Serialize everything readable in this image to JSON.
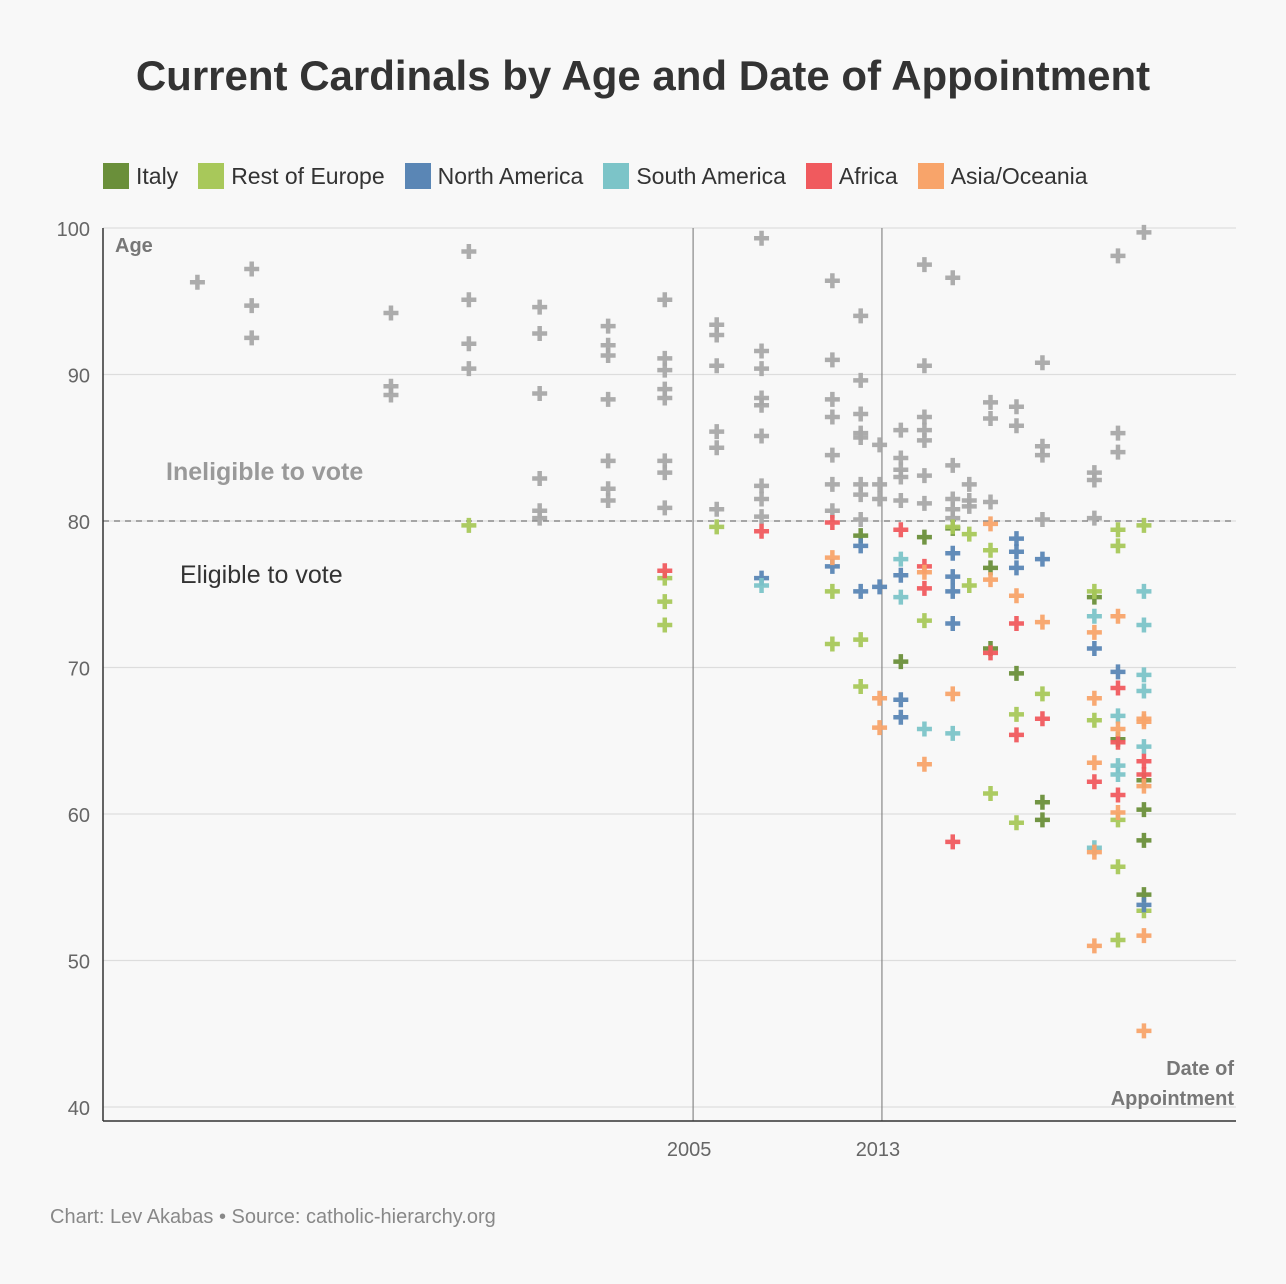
{
  "chart_data": {
    "type": "scatter",
    "title": "Current Cardinals by Age and Date of Appointment",
    "xlabel": "Date of Appointment",
    "ylabel": "Age",
    "xlim": [
      1980,
      2028
    ],
    "ylim": [
      40,
      100
    ],
    "x_ticks": [
      2005,
      2013
    ],
    "y_ticks": [
      40,
      50,
      60,
      70,
      80,
      90,
      100
    ],
    "reference_line": {
      "y": 80,
      "style": "dashed",
      "above_label": "Ineligible to vote",
      "below_label": "Eligible to vote"
    },
    "vertical_lines": [
      2005,
      2013
    ],
    "legend_position": "top",
    "colors": {
      "Italy": "#6a8f3a",
      "Rest of Europe": "#a8c85a",
      "North America": "#5a86b5",
      "South America": "#7cc4c8",
      "Africa": "#f05a5e",
      "Asia/Oceania": "#f8a46a",
      "Ineligible": "#a8a8a8"
    },
    "series": [
      {
        "name": "Ineligible",
        "points": [
          [
            1984,
            96.3
          ],
          [
            1986.3,
            97.2
          ],
          [
            1986.3,
            94.7
          ],
          [
            1986.3,
            92.5
          ],
          [
            1992.2,
            94.2
          ],
          [
            1992.2,
            89.2
          ],
          [
            1992.2,
            88.6
          ],
          [
            1995.5,
            98.4
          ],
          [
            1995.5,
            95.1
          ],
          [
            1995.5,
            92.1
          ],
          [
            1995.5,
            90.4
          ],
          [
            1998.5,
            94.6
          ],
          [
            1998.5,
            92.8
          ],
          [
            1998.5,
            88.7
          ],
          [
            1998.5,
            82.9
          ],
          [
            1998.5,
            80.7
          ],
          [
            1998.5,
            80.2
          ],
          [
            2001.4,
            93.3
          ],
          [
            2001.4,
            92.0
          ],
          [
            2001.4,
            91.3
          ],
          [
            2001.4,
            88.3
          ],
          [
            2001.4,
            84.1
          ],
          [
            2001.4,
            82.2
          ],
          [
            2001.4,
            81.4
          ],
          [
            2003.8,
            95.1
          ],
          [
            2003.8,
            91.1
          ],
          [
            2003.8,
            90.3
          ],
          [
            2003.8,
            89.0
          ],
          [
            2003.8,
            88.4
          ],
          [
            2003.8,
            84.1
          ],
          [
            2003.8,
            83.3
          ],
          [
            2003.8,
            80.9
          ],
          [
            2006.0,
            93.4
          ],
          [
            2006.0,
            92.7
          ],
          [
            2006.0,
            90.6
          ],
          [
            2006.0,
            86.1
          ],
          [
            2006.0,
            85.0
          ],
          [
            2006.0,
            80.8
          ],
          [
            2007.9,
            99.3
          ],
          [
            2007.9,
            91.6
          ],
          [
            2007.9,
            90.4
          ],
          [
            2007.9,
            88.4
          ],
          [
            2007.9,
            87.9
          ],
          [
            2007.9,
            85.8
          ],
          [
            2007.9,
            82.4
          ],
          [
            2007.9,
            81.5
          ],
          [
            2007.9,
            80.3
          ],
          [
            2010.9,
            96.4
          ],
          [
            2010.9,
            91.0
          ],
          [
            2010.9,
            88.3
          ],
          [
            2010.9,
            87.1
          ],
          [
            2010.9,
            84.5
          ],
          [
            2010.9,
            82.5
          ],
          [
            2010.9,
            80.7
          ],
          [
            2012.1,
            94.0
          ],
          [
            2012.1,
            89.6
          ],
          [
            2012.1,
            87.3
          ],
          [
            2012.1,
            86.0
          ],
          [
            2012.1,
            85.7
          ],
          [
            2012.1,
            82.5
          ],
          [
            2012.1,
            81.8
          ],
          [
            2012.1,
            80.1
          ],
          [
            2012.9,
            85.2
          ],
          [
            2012.9,
            82.5
          ],
          [
            2012.9,
            81.5
          ],
          [
            2013.8,
            86.2
          ],
          [
            2013.8,
            84.3
          ],
          [
            2013.8,
            83.5
          ],
          [
            2013.8,
            83.0
          ],
          [
            2013.8,
            81.4
          ],
          [
            2014.8,
            97.5
          ],
          [
            2014.8,
            90.6
          ],
          [
            2014.8,
            87.1
          ],
          [
            2014.8,
            86.2
          ],
          [
            2014.8,
            85.5
          ],
          [
            2014.8,
            83.1
          ],
          [
            2014.8,
            81.2
          ],
          [
            2016.0,
            96.6
          ],
          [
            2016.0,
            83.8
          ],
          [
            2016.0,
            81.5
          ],
          [
            2016.0,
            80.8
          ],
          [
            2016.0,
            80.2
          ],
          [
            2016.7,
            82.5
          ],
          [
            2016.7,
            81.4
          ],
          [
            2016.7,
            81.0
          ],
          [
            2017.6,
            88.1
          ],
          [
            2017.6,
            87.0
          ],
          [
            2017.6,
            81.3
          ],
          [
            2018.7,
            87.8
          ],
          [
            2018.7,
            86.5
          ],
          [
            2019.8,
            90.8
          ],
          [
            2019.8,
            85.1
          ],
          [
            2019.8,
            84.5
          ],
          [
            2019.8,
            80.1
          ],
          [
            2022.0,
            83.3
          ],
          [
            2022.0,
            82.8
          ],
          [
            2022.0,
            80.2
          ],
          [
            2023.0,
            98.1
          ],
          [
            2023.0,
            86.0
          ],
          [
            2023.0,
            84.7
          ],
          [
            2024.1,
            99.7
          ]
        ]
      },
      {
        "name": "Italy",
        "points": [
          [
            2012.1,
            79.0
          ],
          [
            2014.8,
            78.9
          ],
          [
            2013.8,
            70.4
          ],
          [
            2016.0,
            79.5
          ],
          [
            2017.6,
            76.8
          ],
          [
            2017.6,
            71.3
          ],
          [
            2018.7,
            69.6
          ],
          [
            2019.8,
            60.8
          ],
          [
            2019.8,
            59.6
          ],
          [
            2022.0,
            74.8
          ],
          [
            2023.0,
            65.1
          ],
          [
            2024.1,
            62.3
          ],
          [
            2024.1,
            60.3
          ],
          [
            2024.1,
            58.2
          ],
          [
            2024.1,
            54.5
          ]
        ]
      },
      {
        "name": "Rest of Europe",
        "points": [
          [
            1995.5,
            79.7
          ],
          [
            2003.8,
            76.1
          ],
          [
            2003.8,
            74.5
          ],
          [
            2003.8,
            72.9
          ],
          [
            2006.0,
            79.6
          ],
          [
            2010.9,
            75.2
          ],
          [
            2010.9,
            71.6
          ],
          [
            2012.1,
            71.9
          ],
          [
            2012.1,
            68.7
          ],
          [
            2014.8,
            73.2
          ],
          [
            2016.0,
            79.6
          ],
          [
            2016.7,
            79.1
          ],
          [
            2016.7,
            75.6
          ],
          [
            2017.6,
            78.0
          ],
          [
            2017.6,
            61.4
          ],
          [
            2018.7,
            66.8
          ],
          [
            2018.7,
            59.4
          ],
          [
            2019.8,
            68.2
          ],
          [
            2022.0,
            75.2
          ],
          [
            2022.0,
            66.4
          ],
          [
            2023.0,
            79.4
          ],
          [
            2023.0,
            78.3
          ],
          [
            2023.0,
            59.6
          ],
          [
            2023.0,
            56.4
          ],
          [
            2023.0,
            51.4
          ],
          [
            2024.1,
            79.7
          ],
          [
            2024.1,
            53.4
          ]
        ]
      },
      {
        "name": "North America",
        "points": [
          [
            2007.9,
            76.1
          ],
          [
            2010.9,
            76.9
          ],
          [
            2012.1,
            78.3
          ],
          [
            2012.1,
            75.2
          ],
          [
            2012.9,
            75.5
          ],
          [
            2013.8,
            76.3
          ],
          [
            2013.8,
            67.8
          ],
          [
            2013.8,
            66.6
          ],
          [
            2016.0,
            77.8
          ],
          [
            2016.0,
            76.2
          ],
          [
            2016.0,
            75.2
          ],
          [
            2016.0,
            73.0
          ],
          [
            2018.7,
            78.8
          ],
          [
            2018.7,
            77.9
          ],
          [
            2018.7,
            76.8
          ],
          [
            2019.8,
            77.4
          ],
          [
            2022.0,
            71.3
          ],
          [
            2023.0,
            69.7
          ],
          [
            2024.1,
            53.8
          ]
        ]
      },
      {
        "name": "South America",
        "points": [
          [
            2007.9,
            75.6
          ],
          [
            2013.8,
            77.4
          ],
          [
            2013.8,
            74.8
          ],
          [
            2014.8,
            65.8
          ],
          [
            2016.0,
            65.5
          ],
          [
            2022.0,
            73.5
          ],
          [
            2022.0,
            57.7
          ],
          [
            2023.0,
            66.7
          ],
          [
            2023.0,
            63.3
          ],
          [
            2023.0,
            62.7
          ],
          [
            2024.1,
            75.2
          ],
          [
            2024.1,
            72.9
          ],
          [
            2024.1,
            69.5
          ],
          [
            2024.1,
            68.4
          ],
          [
            2024.1,
            64.6
          ]
        ]
      },
      {
        "name": "Africa",
        "points": [
          [
            2003.8,
            76.6
          ],
          [
            2007.9,
            79.3
          ],
          [
            2010.9,
            79.9
          ],
          [
            2013.8,
            79.4
          ],
          [
            2014.8,
            76.9
          ],
          [
            2014.8,
            75.4
          ],
          [
            2016.0,
            58.1
          ],
          [
            2017.6,
            71.0
          ],
          [
            2018.7,
            73.0
          ],
          [
            2018.7,
            65.4
          ],
          [
            2019.8,
            66.5
          ],
          [
            2022.0,
            62.2
          ],
          [
            2023.0,
            68.6
          ],
          [
            2023.0,
            64.9
          ],
          [
            2023.0,
            61.3
          ],
          [
            2024.1,
            63.6
          ],
          [
            2024.1,
            62.7
          ]
        ]
      },
      {
        "name": "Asia/Oceania",
        "points": [
          [
            2010.9,
            77.5
          ],
          [
            2012.9,
            67.9
          ],
          [
            2012.9,
            65.9
          ],
          [
            2014.8,
            76.5
          ],
          [
            2014.8,
            63.4
          ],
          [
            2016.0,
            68.2
          ],
          [
            2017.6,
            79.8
          ],
          [
            2017.6,
            76.0
          ],
          [
            2018.7,
            74.9
          ],
          [
            2019.8,
            73.1
          ],
          [
            2022.0,
            72.4
          ],
          [
            2022.0,
            67.9
          ],
          [
            2022.0,
            63.5
          ],
          [
            2022.0,
            57.4
          ],
          [
            2022.0,
            51.0
          ],
          [
            2023.0,
            73.5
          ],
          [
            2023.0,
            65.8
          ],
          [
            2023.0,
            60.1
          ],
          [
            2024.1,
            66.5
          ],
          [
            2024.1,
            66.3
          ],
          [
            2024.1,
            61.9
          ],
          [
            2024.1,
            51.7
          ],
          [
            2024.1,
            45.2
          ]
        ]
      }
    ]
  },
  "legend": [
    {
      "label": "Italy",
      "color": "#6a8f3a"
    },
    {
      "label": "Rest of Europe",
      "color": "#a8c85a"
    },
    {
      "label": "North America",
      "color": "#5a86b5"
    },
    {
      "label": "South America",
      "color": "#7cc4c8"
    },
    {
      "label": "Africa",
      "color": "#f05a5e"
    },
    {
      "label": "Asia/Oceania",
      "color": "#f8a46a"
    }
  ],
  "source": "Chart: Lev Akabas • Source: catholic-hierarchy.org"
}
